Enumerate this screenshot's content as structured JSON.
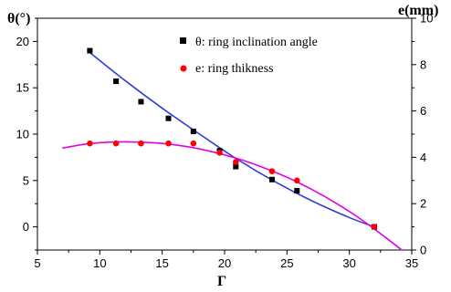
{
  "chart_data": {
    "type": "scatter",
    "x_axis": {
      "label": "Γ",
      "range": [
        5,
        35
      ],
      "ticks": [
        5,
        10,
        15,
        20,
        25,
        30,
        35
      ]
    },
    "y_left": {
      "label": "θ(°)",
      "range": [
        -2.5,
        22.5
      ],
      "ticks": [
        0,
        5,
        10,
        15,
        20
      ]
    },
    "y_right": {
      "label": "e(mm)",
      "range": [
        0,
        10
      ],
      "ticks": [
        0,
        2,
        4,
        6,
        8,
        10
      ]
    },
    "legend_position": "top-right",
    "series": [
      {
        "name": "θ: ring inclination angle",
        "axis": "left",
        "marker": "square",
        "marker_color": "#000000",
        "fit_color": "#2e3fd6",
        "points": [
          [
            9.2,
            19.0
          ],
          [
            11.3,
            15.7
          ],
          [
            13.3,
            13.5
          ],
          [
            15.5,
            11.7
          ],
          [
            17.5,
            10.3
          ],
          [
            19.6,
            8.2
          ],
          [
            20.9,
            6.5
          ],
          [
            23.8,
            5.1
          ],
          [
            25.8,
            3.9
          ],
          [
            32.0,
            0.0
          ]
        ],
        "fit": [
          [
            9.2,
            18.8
          ],
          [
            12,
            15.8
          ],
          [
            15,
            12.8
          ],
          [
            18,
            10.0
          ],
          [
            21,
            7.3
          ],
          [
            24,
            4.9
          ],
          [
            27,
            2.8
          ],
          [
            30,
            1.0
          ],
          [
            32,
            0.0
          ]
        ]
      },
      {
        "name": "e: ring thikness",
        "axis": "right",
        "marker": "circle",
        "marker_color": "#ff0000",
        "fit_color": "#e600e6",
        "points": [
          [
            9.2,
            4.6
          ],
          [
            11.3,
            4.6
          ],
          [
            13.3,
            4.6
          ],
          [
            15.5,
            4.6
          ],
          [
            17.5,
            4.6
          ],
          [
            19.6,
            4.2
          ],
          [
            20.9,
            3.8
          ],
          [
            23.8,
            3.4
          ],
          [
            25.8,
            3.0
          ],
          [
            32.0,
            1.0
          ]
        ],
        "fit": [
          [
            7,
            4.4
          ],
          [
            9,
            4.58
          ],
          [
            11,
            4.66
          ],
          [
            13,
            4.66
          ],
          [
            15,
            4.6
          ],
          [
            17,
            4.46
          ],
          [
            19,
            4.24
          ],
          [
            21,
            3.95
          ],
          [
            23,
            3.58
          ],
          [
            25,
            3.14
          ],
          [
            27,
            2.61
          ],
          [
            29,
            2.0
          ],
          [
            31,
            1.3
          ],
          [
            33,
            0.5
          ],
          [
            34.2,
            0.0
          ]
        ]
      }
    ]
  }
}
